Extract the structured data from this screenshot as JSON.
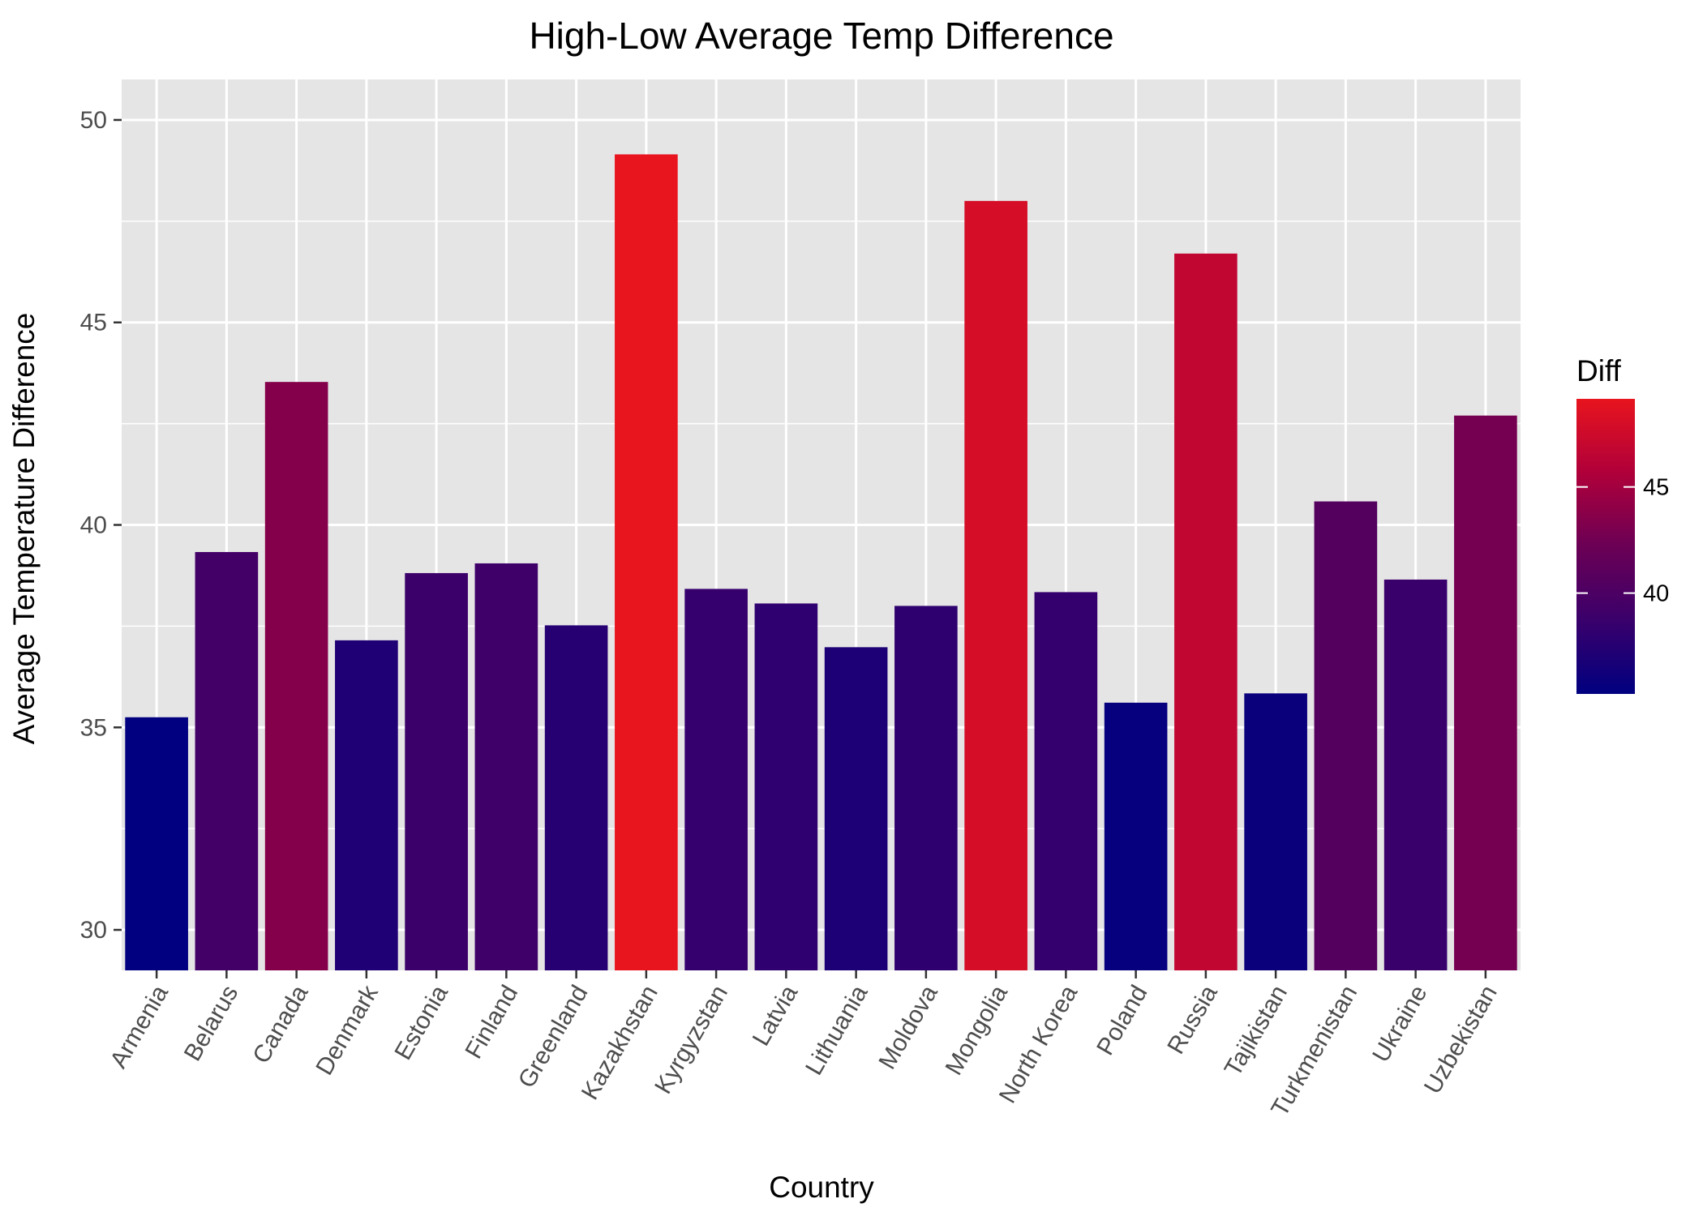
{
  "chart_data": {
    "type": "bar",
    "title": "High-Low Average Temp Difference",
    "xlabel": "Country",
    "ylabel": "Average Temperature Difference",
    "ylim": [
      29,
      51
    ],
    "yticks": [
      30,
      35,
      40,
      45,
      50
    ],
    "grid": true,
    "legend_position": "right",
    "categories": [
      "Armenia",
      "Belarus",
      "Canada",
      "Denmark",
      "Estonia",
      "Finland",
      "Greenland",
      "Kazakhstan",
      "Kyrgyzstan",
      "Latvia",
      "Lithuania",
      "Moldova",
      "Mongolia",
      "North Korea",
      "Poland",
      "Russia",
      "Tajikistan",
      "Turkmenistan",
      "Ukraine",
      "Uzbekistan"
    ],
    "values": [
      35.25,
      39.33,
      43.53,
      37.15,
      38.81,
      39.05,
      37.52,
      49.15,
      38.42,
      38.06,
      36.98,
      38.0,
      48.0,
      38.34,
      35.61,
      46.7,
      35.84,
      40.58,
      38.65,
      42.7
    ],
    "legend": {
      "title": "Diff",
      "ticks": [
        40,
        45
      ],
      "range": [
        35.25,
        49.15
      ],
      "color_low": "#000080",
      "color_high": "#e8141e"
    },
    "colors": {
      "panel_background": "#e5e5e5",
      "grid": "#ffffff",
      "tick": "#333333"
    }
  }
}
